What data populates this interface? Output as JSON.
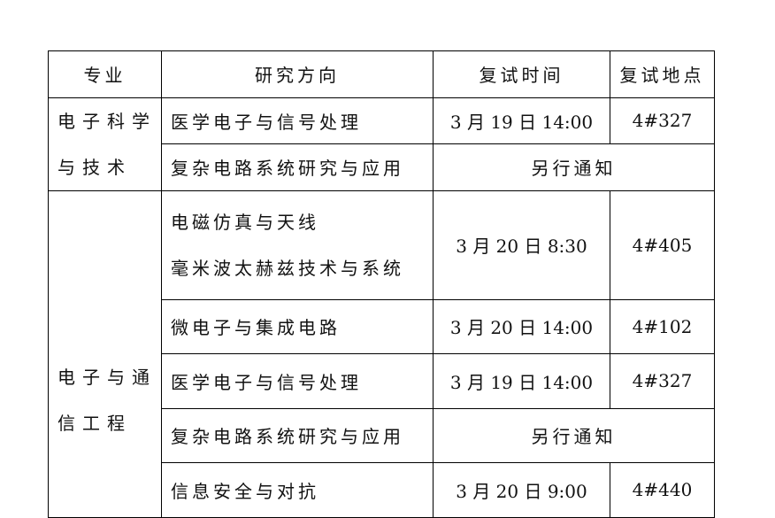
{
  "headers": [
    "专业",
    "研究方向",
    "复试时间",
    "复试地点"
  ],
  "majors": [
    {
      "name_line1": "电子科学",
      "name_line2": "与技术"
    },
    {
      "name_line1": "电子与通",
      "name_line2": "信工程"
    }
  ],
  "rows": [
    {
      "direction": "医学电子与信号处理",
      "time": "3 月 19 日 14:00",
      "place": "4#327"
    },
    {
      "direction": "复杂电路系统研究与应用",
      "merged": "另行通知"
    },
    {
      "direction_line1": "电磁仿真与天线",
      "direction_line2": "毫米波太赫兹技术与系统",
      "time": "3 月 20 日 8:30",
      "place": "4#405"
    },
    {
      "direction": "微电子与集成电路",
      "time": "3 月 20 日 14:00",
      "place": "4#102"
    },
    {
      "direction": "医学电子与信号处理",
      "time": "3 月 19 日 14:00",
      "place": "4#327"
    },
    {
      "direction": "复杂电路系统研究与应用",
      "merged": "另行通知"
    },
    {
      "direction": "信息安全与对抗",
      "time": "3 月 20 日 9:00",
      "place": "4#440"
    }
  ]
}
